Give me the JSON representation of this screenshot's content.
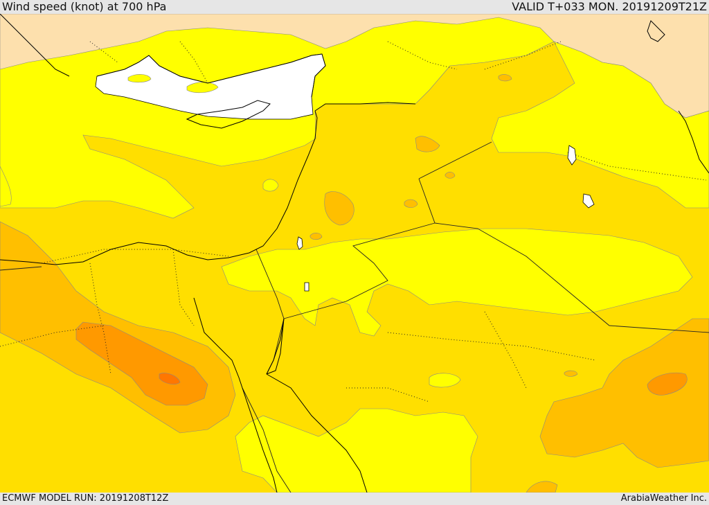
{
  "header": {
    "title": "Wind speed (knot) at 700 hPa",
    "valid": "VALID T+033 MON. 20191209T21Z"
  },
  "footer": {
    "model_run": "ECMWF MODEL RUN: 20191208T12Z",
    "credit": "ArabiaWeather Inc."
  },
  "colors": {
    "sea": "#ffffff",
    "level_1": "#fde0ad",
    "level_2": "#ffff00",
    "level_3": "#ffdf00",
    "level_4": "#ffbf00",
    "level_5": "#ff9900",
    "level_6": "#ff7700",
    "coast": "#000000",
    "border": "#222222"
  }
}
